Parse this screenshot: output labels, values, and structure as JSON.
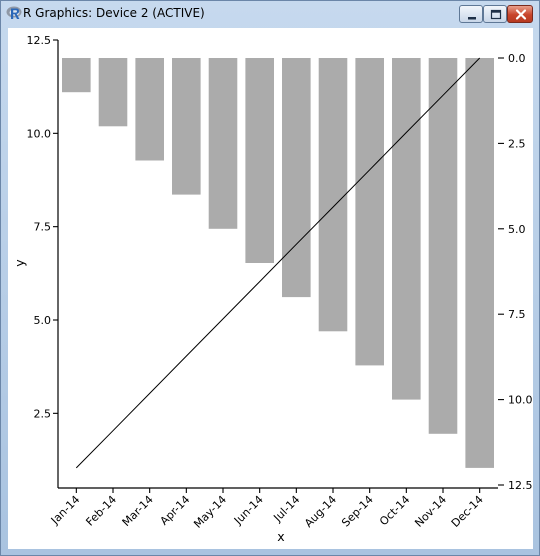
{
  "window": {
    "title": "R Graphics: Device 2 (ACTIVE)",
    "icon": "r-logo-icon",
    "buttons": [
      "minimize-icon",
      "maximize-icon",
      "close-icon"
    ]
  },
  "chart_data": {
    "type": "bar",
    "categories": [
      "Jan-14",
      "Feb-14",
      "Mar-14",
      "Apr-14",
      "May-14",
      "Jun-14",
      "Jul-14",
      "Aug-14",
      "Sep-14",
      "Oct-14",
      "Nov-14",
      "Dec-14"
    ],
    "series": [
      {
        "type": "bar",
        "axis": "right",
        "color": "#ababab",
        "values": [
          1,
          2,
          3,
          4,
          5,
          6,
          7,
          8,
          9,
          10,
          11,
          12
        ]
      },
      {
        "type": "line",
        "axis": "left",
        "color": "#000000",
        "values": [
          1,
          2,
          3,
          4,
          5,
          6,
          7,
          8,
          9,
          10,
          11,
          12
        ]
      }
    ],
    "xlabel": "x",
    "ylabel": "y",
    "y_left": {
      "lim": [
        0.5,
        12.5
      ],
      "ticks": [
        "2.5",
        "5.0",
        "7.5",
        "10.0",
        "12.5"
      ]
    },
    "y_right": {
      "lim": [
        0,
        12.5
      ],
      "reversed": true,
      "ticks": [
        "0.0",
        "2.5",
        "5.0",
        "7.5",
        "10.0",
        "12.5"
      ]
    },
    "grid": false,
    "legend": "none"
  }
}
